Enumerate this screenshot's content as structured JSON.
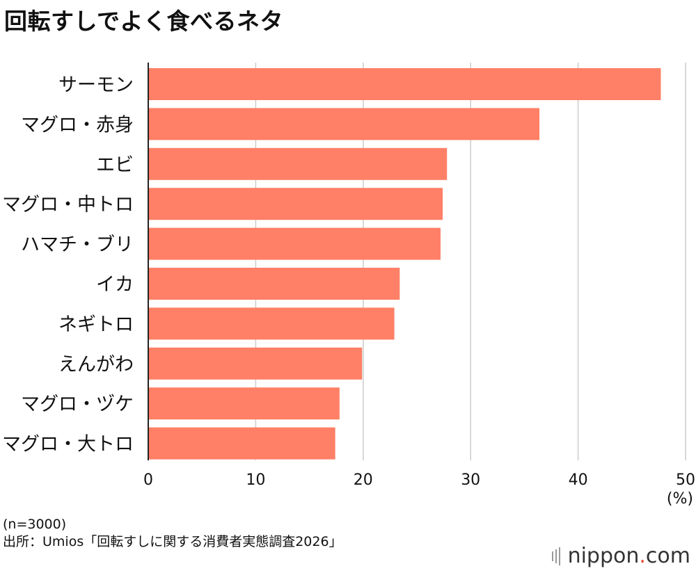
{
  "title": "回転すしでよく食べるネタ",
  "chart_data": {
    "type": "bar",
    "orientation": "horizontal",
    "title": "回転すしでよく食べるネタ",
    "categories": [
      "サーモン",
      "マグロ・赤身",
      "エビ",
      "マグロ・中トロ",
      "ハマチ・ブリ",
      "イカ",
      "ネギトロ",
      "えんがわ",
      "マグロ・ヅケ",
      "マグロ・大トロ"
    ],
    "values": [
      47.7,
      36.4,
      27.8,
      27.4,
      27.2,
      23.4,
      22.9,
      19.9,
      17.8,
      17.4
    ],
    "xlim": [
      0,
      50
    ],
    "xticks": [
      "0",
      "10",
      "20",
      "30",
      "40",
      "50"
    ],
    "xlabel": "(%)",
    "ylabel": "",
    "grid": true,
    "bar_color": "#ff8066"
  },
  "footer": {
    "sample": "(n=3000)",
    "source": "出所：Umios「回転すしに関する消費者実態調査2026」"
  },
  "logo": {
    "name": "nippon",
    "dot": ".",
    "tld": "com"
  }
}
